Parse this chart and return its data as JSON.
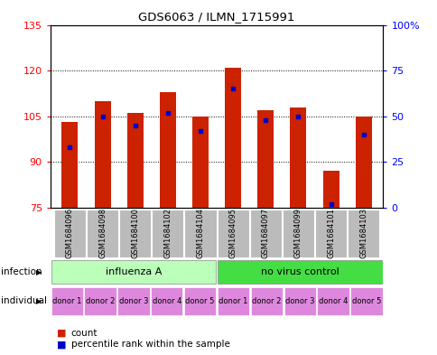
{
  "title": "GDS6063 / ILMN_1715991",
  "samples": [
    "GSM1684096",
    "GSM1684098",
    "GSM1684100",
    "GSM1684102",
    "GSM1684104",
    "GSM1684095",
    "GSM1684097",
    "GSM1684099",
    "GSM1684101",
    "GSM1684103"
  ],
  "count_values": [
    103,
    110,
    106,
    113,
    105,
    121,
    107,
    108,
    87,
    105
  ],
  "percentile_values": [
    33,
    50,
    45,
    52,
    42,
    65,
    48,
    50,
    2,
    40
  ],
  "ylim_left": [
    75,
    135
  ],
  "ylim_right": [
    0,
    100
  ],
  "yticks_left": [
    75,
    90,
    105,
    120,
    135
  ],
  "yticks_right": [
    0,
    25,
    50,
    75,
    100
  ],
  "bar_color": "#cc2200",
  "marker_color": "#0000cc",
  "bar_width": 0.5,
  "infection_groups": [
    {
      "label": "influenza A",
      "start": 0,
      "end": 5,
      "color": "#bbffbb"
    },
    {
      "label": "no virus control",
      "start": 5,
      "end": 10,
      "color": "#44dd44"
    }
  ],
  "individual_labels": [
    "donor 1",
    "donor 2",
    "donor 3",
    "donor 4",
    "donor 5",
    "donor 1",
    "donor 2",
    "donor 3",
    "donor 4",
    "donor 5"
  ],
  "individual_color": "#dd88dd",
  "sample_bg_color": "#bbbbbb",
  "legend_count_label": "count",
  "legend_pct_label": "percentile rank within the sample",
  "infection_label": "infection",
  "individual_label": "individual"
}
